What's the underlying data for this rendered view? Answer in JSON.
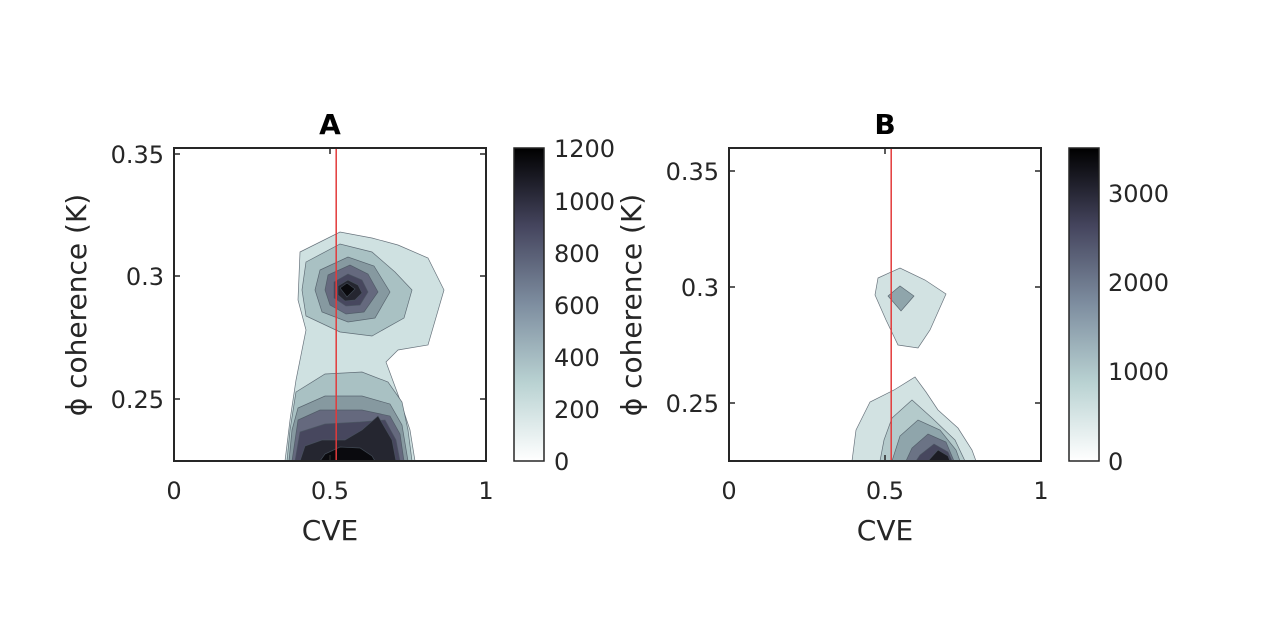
{
  "chart_data": [
    {
      "type": "contour",
      "title": "A",
      "xlabel": "CVE",
      "ylabel": "ϕ coherence (K)",
      "xlim": [
        0,
        1
      ],
      "ylim": [
        0.225,
        0.352
      ],
      "xticks": [
        "0",
        "0.5",
        "1"
      ],
      "yticks": [
        "0.25",
        "0.3",
        "0.35"
      ],
      "vline_x": 0.52,
      "vline_color": "#e23a3a",
      "colorbar": {
        "min": 0,
        "max": 1200,
        "ticks": [
          "0",
          "200",
          "400",
          "600",
          "800",
          "1000",
          "1200"
        ]
      },
      "contour_fills": [
        "#cfe1e1",
        "#a9c1c3",
        "#8699a0",
        "#65697e",
        "#47475e",
        "#252630",
        "#0a0a0e"
      ],
      "peaks": [
        {
          "cve": 0.55,
          "coherence": 0.294,
          "density": 1200
        },
        {
          "cve": 0.55,
          "coherence": 0.228,
          "density": 1200
        }
      ]
    },
    {
      "type": "contour",
      "title": "B",
      "xlabel": "CVE",
      "ylabel": "ϕ coherence (K)",
      "xlim": [
        0,
        1
      ],
      "ylim": [
        0.225,
        0.36
      ],
      "xticks": [
        "0",
        "0.5",
        "1"
      ],
      "yticks": [
        "0.25",
        "0.3",
        "0.35"
      ],
      "vline_x": 0.52,
      "vline_color": "#e23a3a",
      "colorbar": {
        "min": 0,
        "max": 3500,
        "ticks": [
          "0",
          "1000",
          "2000",
          "3000"
        ]
      },
      "contour_fills": [
        "#d2e2e2",
        "#b4cacb",
        "#8fa5ab",
        "#6b7385",
        "#47475e",
        "#1c1c24"
      ],
      "peaks": [
        {
          "cve": 0.54,
          "coherence": 0.296,
          "density": 900
        },
        {
          "cve": 0.68,
          "coherence": 0.226,
          "density": 3500
        }
      ]
    }
  ]
}
